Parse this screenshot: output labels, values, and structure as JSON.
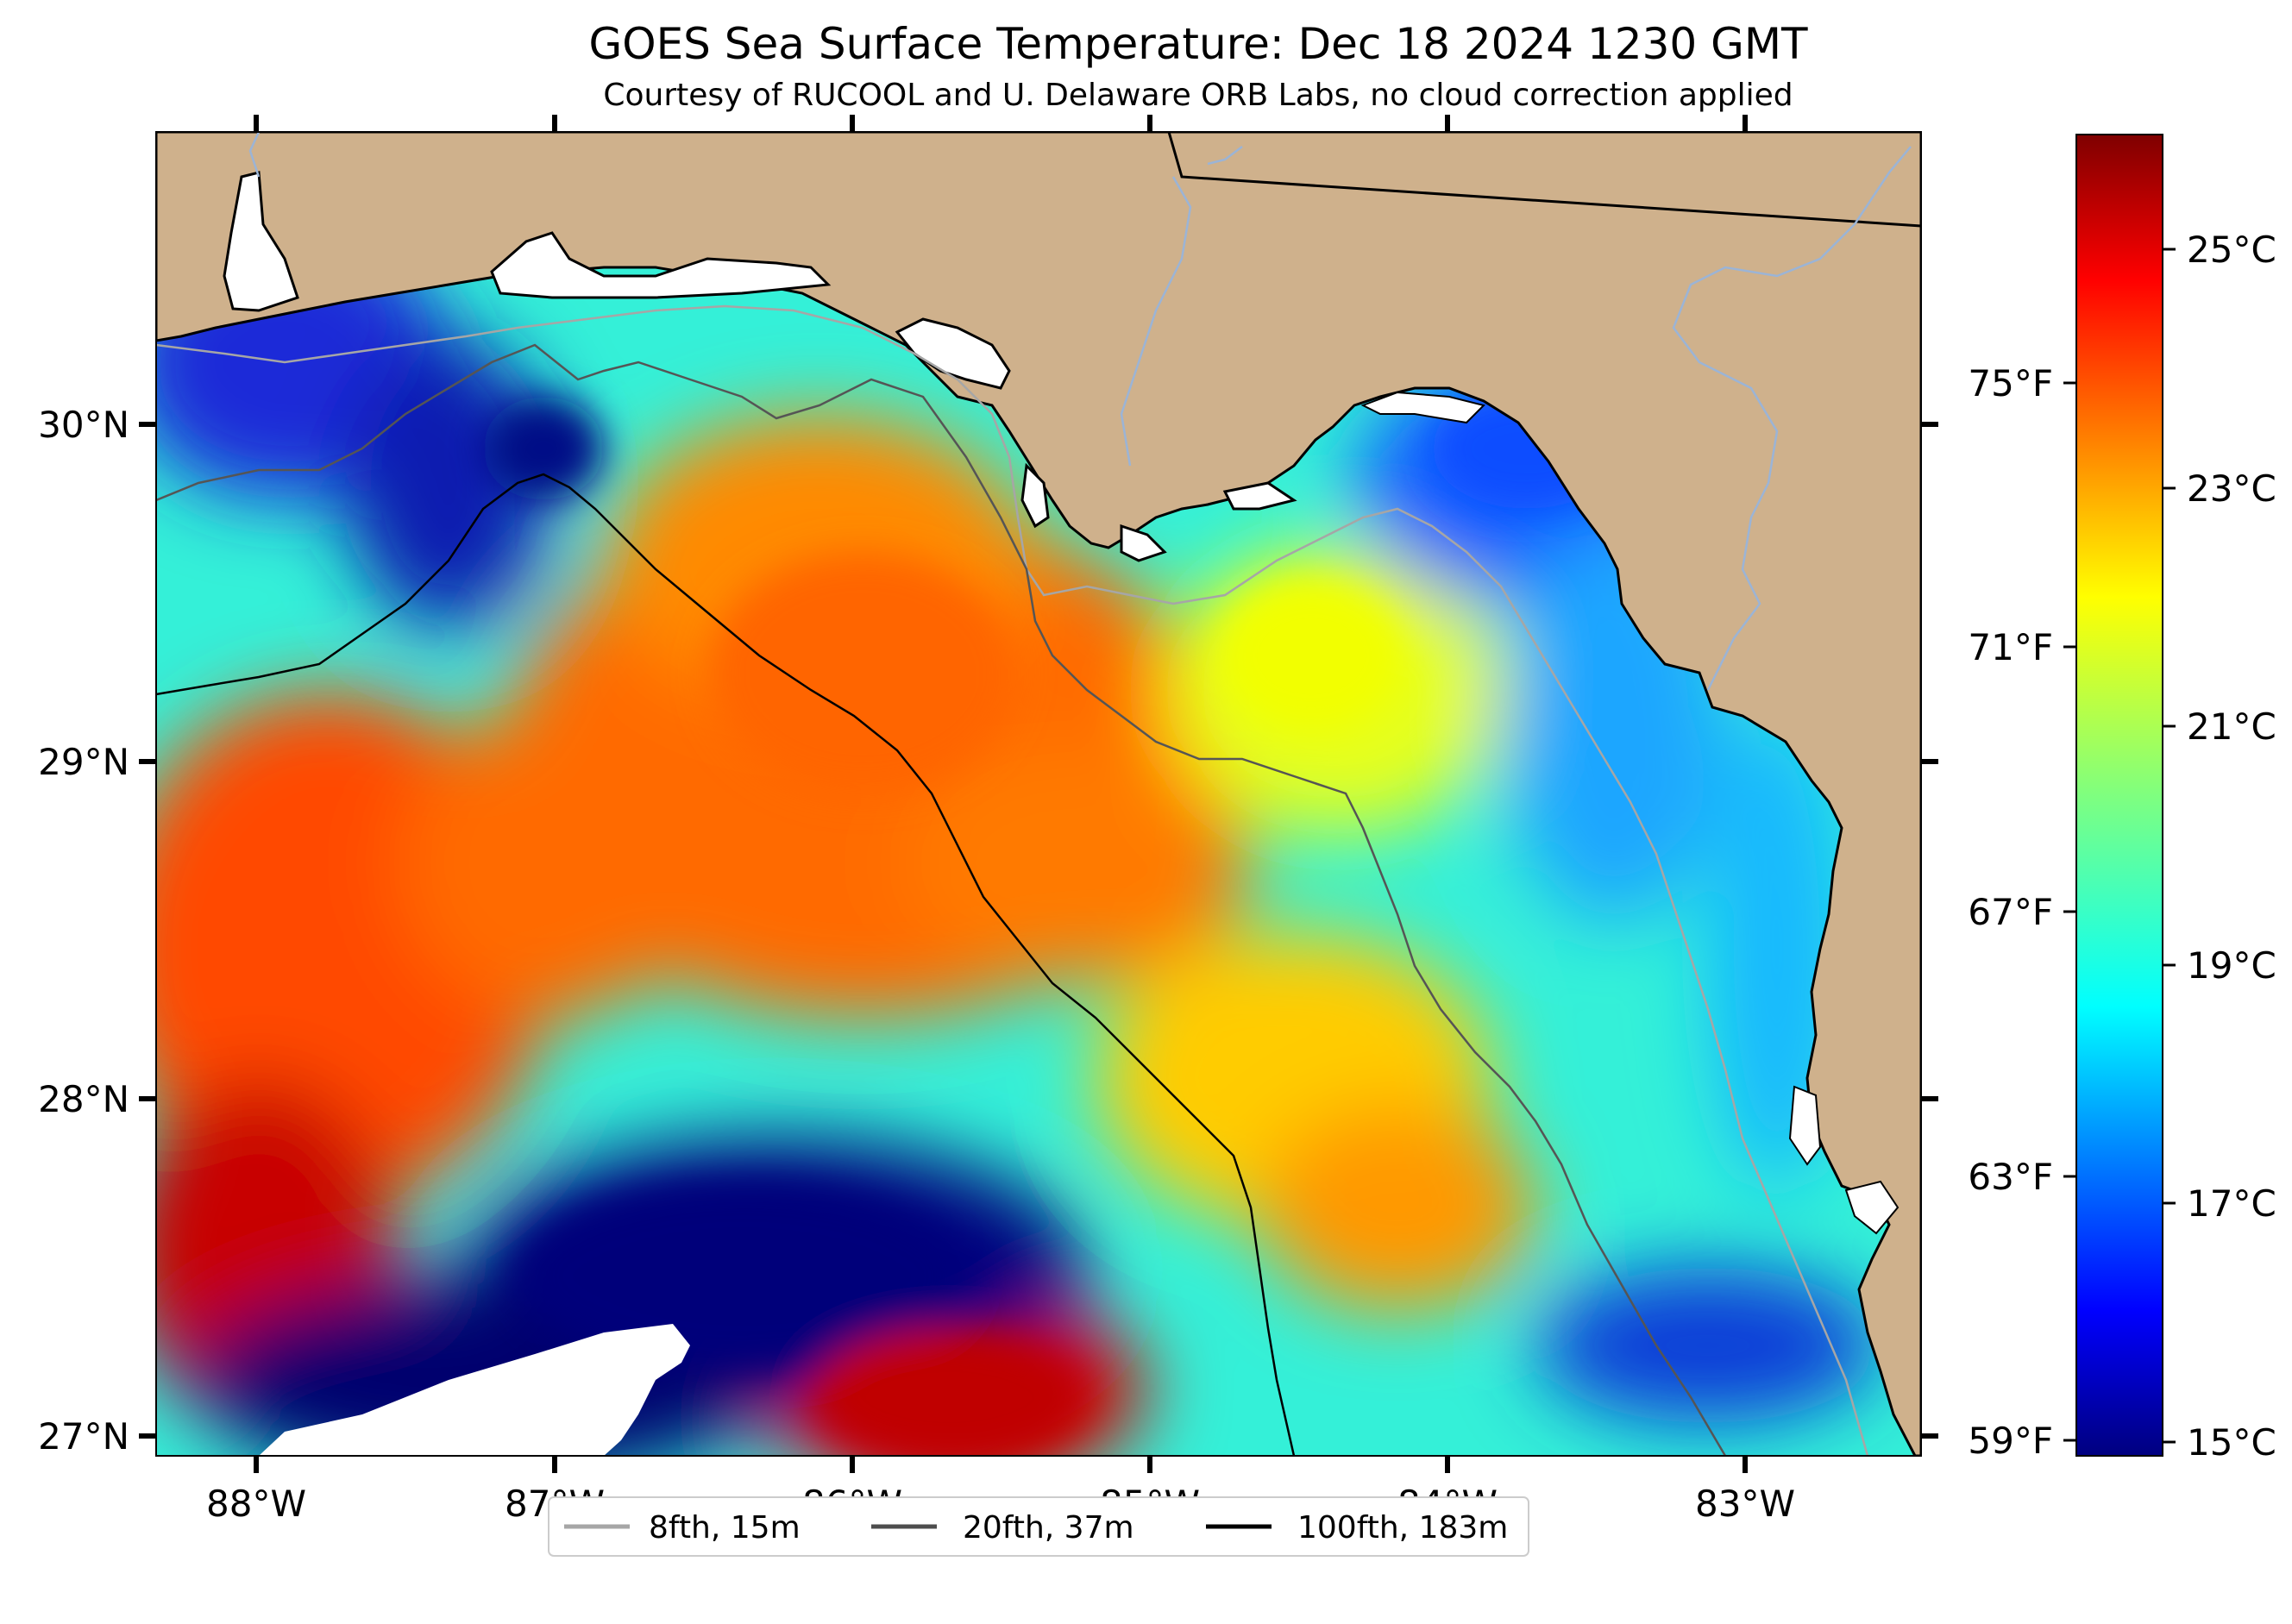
{
  "title": "GOES Sea Surface Temperature: Dec 18 2024 1230 GMT",
  "subtitle": "Courtesy of RUCOOL and U. Delaware ORB Labs, no cloud correction applied",
  "lon_labels": [
    "88°W",
    "87°W",
    "86°W",
    "85°W",
    "84°W",
    "83°W"
  ],
  "lat_labels": [
    "30°N",
    "29°N",
    "28°N",
    "27°N"
  ],
  "colorbar": {
    "celsius_labels": [
      "25°C",
      "23°C",
      "21°C",
      "19°C",
      "17°C",
      "15°C"
    ],
    "fahrenheit_labels": [
      "75°F",
      "71°F",
      "67°F",
      "63°F",
      "59°F"
    ],
    "range_celsius": [
      14.8,
      26.0
    ],
    "colormap": "jet",
    "gradient": [
      "#00007f",
      "#0000ff",
      "#007fff",
      "#00ffff",
      "#7fff7f",
      "#ffff00",
      "#ff7f00",
      "#ff0000",
      "#7f0000"
    ]
  },
  "legend": {
    "items": [
      {
        "label": "8fth, 15m",
        "color": "#a6a6a6"
      },
      {
        "label": "20fth, 37m",
        "color": "#4d4d4d"
      },
      {
        "label": "100fth, 183m",
        "color": "#000000"
      }
    ]
  },
  "map": {
    "extent_lon": [
      -88.33,
      -82.4
    ],
    "extent_lat": [
      26.93,
      30.85
    ],
    "land_color": "#cfb18c",
    "no_data_color": "#ffffff",
    "river_color": "#9bb4d6"
  }
}
